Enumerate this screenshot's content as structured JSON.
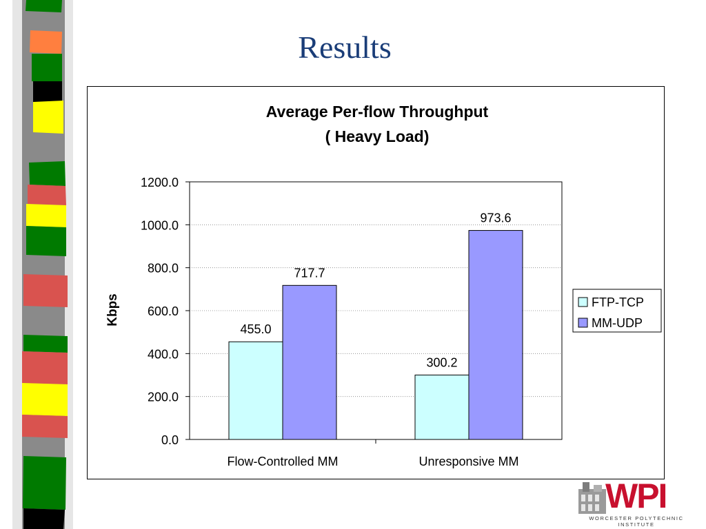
{
  "slide": {
    "title": "Results"
  },
  "logo": {
    "brand": "WPI",
    "subtitle": "WORCESTER POLYTECHNIC INSTITUTE"
  },
  "colors": {
    "title_blue": "#1a3d78",
    "ftp_tcp": "#ccffff",
    "mm_udp": "#9999ff",
    "logo_red": "#c8102e",
    "strip_green": "#007a00",
    "strip_red": "#d9534f",
    "strip_yellow": "#ffff00",
    "strip_orange": "#ff7f3f",
    "strip_gray": "#888888"
  },
  "chart_data": {
    "type": "bar",
    "title": "Average Per-flow Throughput",
    "subtitle": "( Heavy Load)",
    "xlabel": "",
    "ylabel": "Kbps",
    "ylim": [
      0,
      1200
    ],
    "yticks": [
      "0.0",
      "200.0",
      "400.0",
      "600.0",
      "800.0",
      "1000.0",
      "1200.0"
    ],
    "categories": [
      "Flow-Controlled MM",
      "Unresponsive MM"
    ],
    "series": [
      {
        "name": "FTP-TCP",
        "values": [
          455.0,
          300.2
        ],
        "labels": [
          "455.0",
          "300.2"
        ],
        "color": "#ccffff"
      },
      {
        "name": "MM-UDP",
        "values": [
          717.7,
          973.6
        ],
        "labels": [
          "717.7",
          "973.6"
        ],
        "color": "#9999ff"
      }
    ],
    "grid": true,
    "legend": "right"
  }
}
